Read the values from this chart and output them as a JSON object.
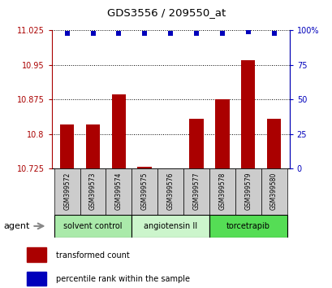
{
  "title": "GDS3556 / 209550_at",
  "samples": [
    "GSM399572",
    "GSM399573",
    "GSM399574",
    "GSM399575",
    "GSM399576",
    "GSM399577",
    "GSM399578",
    "GSM399579",
    "GSM399580"
  ],
  "transformed_counts": [
    10.82,
    10.82,
    10.885,
    10.728,
    10.726,
    10.832,
    10.875,
    10.96,
    10.832
  ],
  "percentile_ranks": [
    98,
    98,
    98,
    98,
    98,
    98,
    98,
    99,
    98
  ],
  "groups": [
    {
      "label": "solvent control",
      "indices": [
        0,
        1,
        2
      ],
      "color": "#aaeaaa"
    },
    {
      "label": "angiotensin II",
      "indices": [
        3,
        4,
        5
      ],
      "color": "#ccf5cc"
    },
    {
      "label": "torcetrapib",
      "indices": [
        6,
        7,
        8
      ],
      "color": "#55dd55"
    }
  ],
  "bar_color": "#aa0000",
  "dot_color": "#0000bb",
  "ylim_left": [
    10.725,
    11.025
  ],
  "yticks_left": [
    10.725,
    10.8,
    10.875,
    10.95,
    11.025
  ],
  "yticks_right": [
    0,
    25,
    50,
    75,
    100
  ],
  "ylim_right": [
    0,
    100
  ],
  "agent_label": "agent",
  "legend_bar": "transformed count",
  "legend_dot": "percentile rank within the sample",
  "sample_box_color": "#cccccc",
  "bar_width": 0.55
}
